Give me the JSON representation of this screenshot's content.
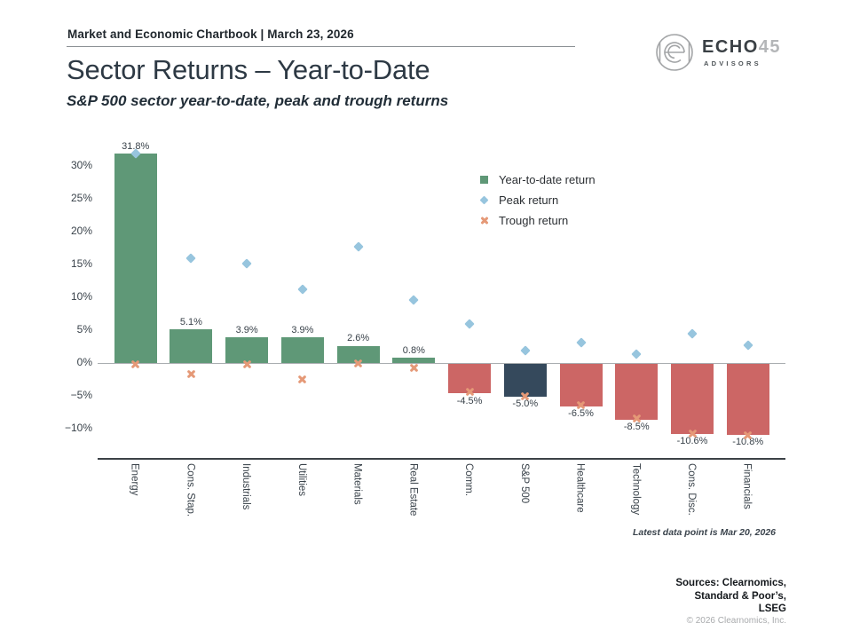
{
  "header": {
    "chartbook_title": "Market and Economic Chartbook | March 23, 2026"
  },
  "logo": {
    "name": "ECHO",
    "number": "45",
    "subtitle": "ADVISORS"
  },
  "title": "Sector Returns – Year-to-Date",
  "subtitle": "S&P 500 sector year-to-date, peak and trough returns",
  "chart_data": {
    "type": "bar",
    "title": "Sector Returns – Year-to-Date",
    "categories": [
      "Energy",
      "Cons. Stap.",
      "Industrials",
      "Utilities",
      "Materials",
      "Real Estate",
      "Comm.",
      "S&P 500",
      "Healthcare",
      "Technology",
      "Cons. Disc.",
      "Financials"
    ],
    "series": [
      {
        "name": "Year-to-date return",
        "type": "bar",
        "values": [
          31.8,
          5.1,
          3.9,
          3.9,
          2.6,
          0.8,
          -4.5,
          -5.0,
          -6.5,
          -8.5,
          -10.6,
          -10.8
        ],
        "labels": [
          "31.8%",
          "5.1%",
          "3.9%",
          "3.9%",
          "2.6%",
          "0.8%",
          "-4.5%",
          "-5.0%",
          "-6.5%",
          "-8.5%",
          "-10.6%",
          "-10.8%"
        ]
      },
      {
        "name": "Peak return",
        "type": "scatter",
        "marker": "diamond",
        "values": [
          31.8,
          15.9,
          15.1,
          11.2,
          17.7,
          9.6,
          6.0,
          1.9,
          3.1,
          1.4,
          4.5,
          2.7
        ]
      },
      {
        "name": "Trough return",
        "type": "scatter",
        "marker": "x",
        "values": [
          -0.2,
          -1.7,
          -0.2,
          -2.4,
          -0.1,
          -0.7,
          -4.4,
          -5.0,
          -6.4,
          -8.4,
          -10.7,
          -11.0
        ]
      }
    ],
    "highlight_category": "S&P 500",
    "ytick_labels": [
      "30%",
      "25%",
      "20%",
      "15%",
      "10%",
      "5%",
      "0%",
      "−5%",
      "−10%"
    ],
    "ytick_values": [
      30,
      25,
      20,
      15,
      10,
      5,
      0,
      -5,
      -10
    ],
    "ylim": [
      -14.6,
      33.6
    ],
    "grid": false,
    "legend_position": "upper-right-inside",
    "colors": {
      "positive_bar": "#5f9877",
      "negative_bar": "#cc6665",
      "benchmark_bar": "#35495c",
      "peak_marker": "#97c5de",
      "trough_marker": "#e59977"
    }
  },
  "footnote": "Latest data point is Mar 20, 2026",
  "footer": {
    "sources_lines": [
      "Sources: Clearnomics,",
      "Standard & Poor’s,",
      "LSEG"
    ],
    "copyright": "© 2026 Clearnomics, Inc."
  }
}
